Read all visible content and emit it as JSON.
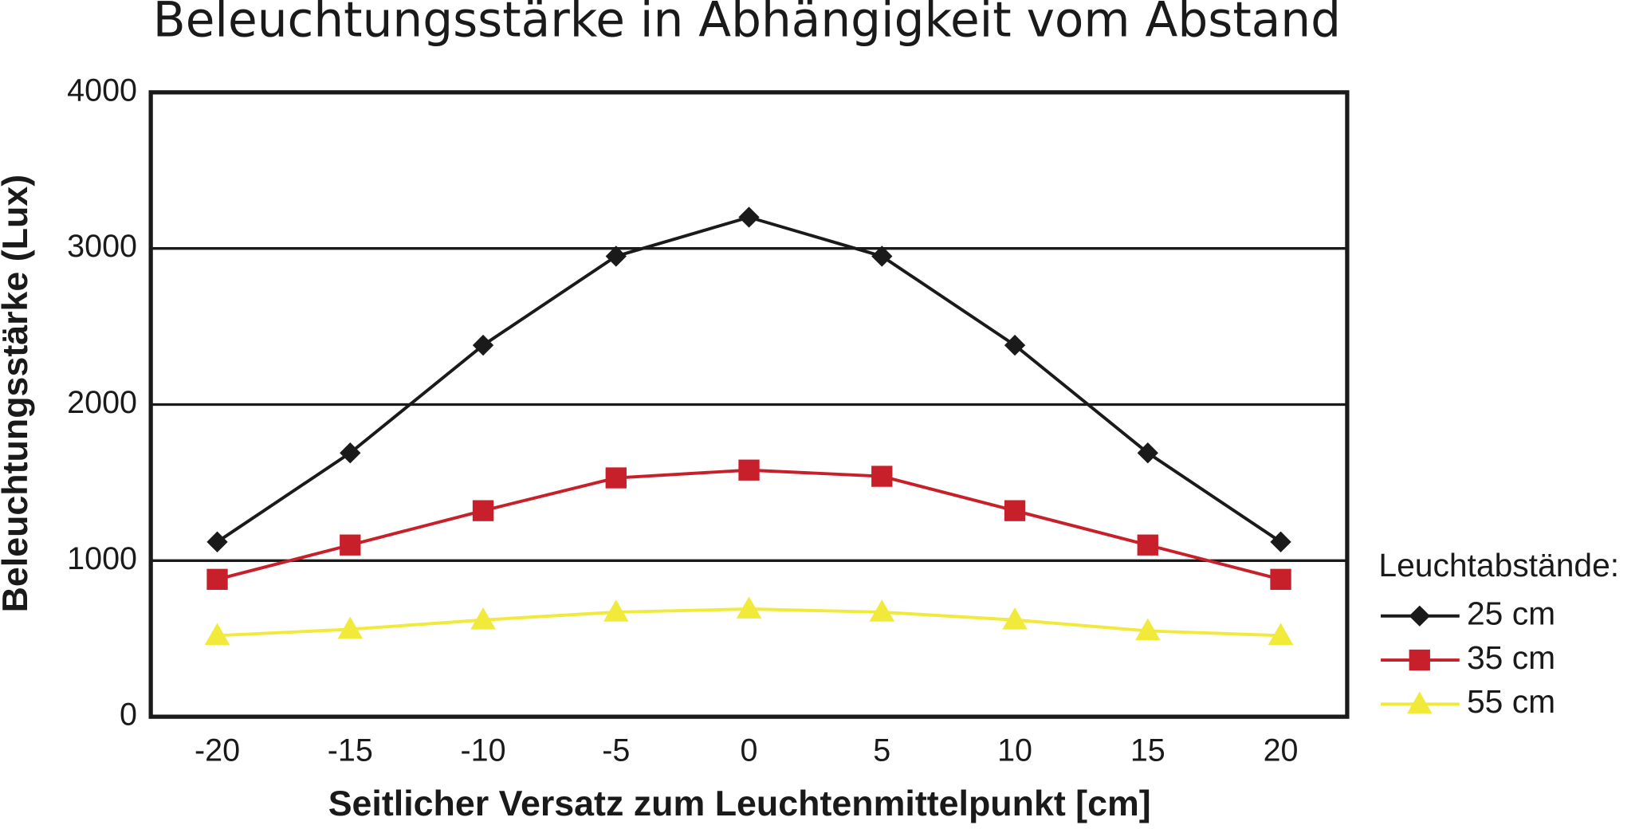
{
  "chart_data": {
    "type": "line",
    "title": "Beleuchtungsstärke in Abhängigkeit vom Abstand",
    "x_label": "Seitlicher Versatz zum Leuchtenmittelpunkt [cm]",
    "y_label": "Beleuchtungsstärke (Lux)",
    "x": [
      -20,
      -15,
      -10,
      -5,
      0,
      5,
      10,
      15,
      20
    ],
    "xlim": [
      -22.5,
      22.5
    ],
    "xticks": [
      -20,
      -15,
      -10,
      -5,
      0,
      5,
      10,
      15,
      20
    ],
    "ylim": [
      0,
      4000
    ],
    "yticks": [
      0,
      1000,
      2000,
      3000,
      4000
    ],
    "grid": true,
    "legend_title": "Leuchtabstände:",
    "legend_position": "right",
    "series": [
      {
        "name": "25 cm",
        "color": "#1a1a1a",
        "marker": "diamond",
        "values": [
          1120,
          1690,
          2380,
          2950,
          3200,
          2950,
          2380,
          1690,
          1120
        ]
      },
      {
        "name": "35 cm",
        "color": "#c8202a",
        "marker": "square",
        "values": [
          880,
          1100,
          1320,
          1530,
          1580,
          1540,
          1320,
          1100,
          880
        ]
      },
      {
        "name": "55 cm",
        "color": "#f2ea3a",
        "marker": "triangle",
        "values": [
          520,
          560,
          620,
          670,
          690,
          670,
          620,
          550,
          520
        ]
      }
    ]
  }
}
